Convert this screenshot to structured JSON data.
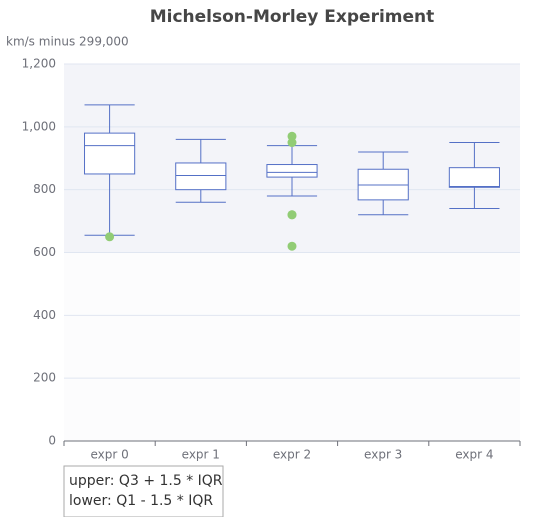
{
  "chart_data": {
    "type": "boxplot",
    "title": "Michelson-Morley Experiment",
    "subtitle": [
      "upper: Q3 + 1.5 * IQR",
      "lower: Q1 - 1.5 * IQR"
    ],
    "y_label": "km/s minus 299,000",
    "categories": [
      "expr 0",
      "expr 1",
      "expr 2",
      "expr 3",
      "expr 4"
    ],
    "boxes": [
      [
        655,
        850,
        940,
        980,
        1070
      ],
      [
        760,
        800,
        845,
        885,
        960
      ],
      [
        780,
        840,
        855,
        880,
        940
      ],
      [
        720,
        767.5,
        815,
        865,
        920
      ],
      [
        740,
        807.5,
        810,
        870,
        950
      ]
    ],
    "outliers": [
      [
        0,
        650
      ],
      [
        2,
        620
      ],
      [
        2,
        720
      ],
      [
        2,
        720
      ],
      [
        2,
        950
      ],
      [
        2,
        970
      ]
    ],
    "box_color": "#5470c6",
    "outlier_color": "#91cc75",
    "ylim": [
      0,
      1200
    ],
    "yticks": [
      0,
      200,
      400,
      600,
      800,
      {
        "value": 1000,
        "label": "1,000"
      },
      {
        "value": 1200,
        "label": "1,200"
      }
    ],
    "split_area": true
  }
}
